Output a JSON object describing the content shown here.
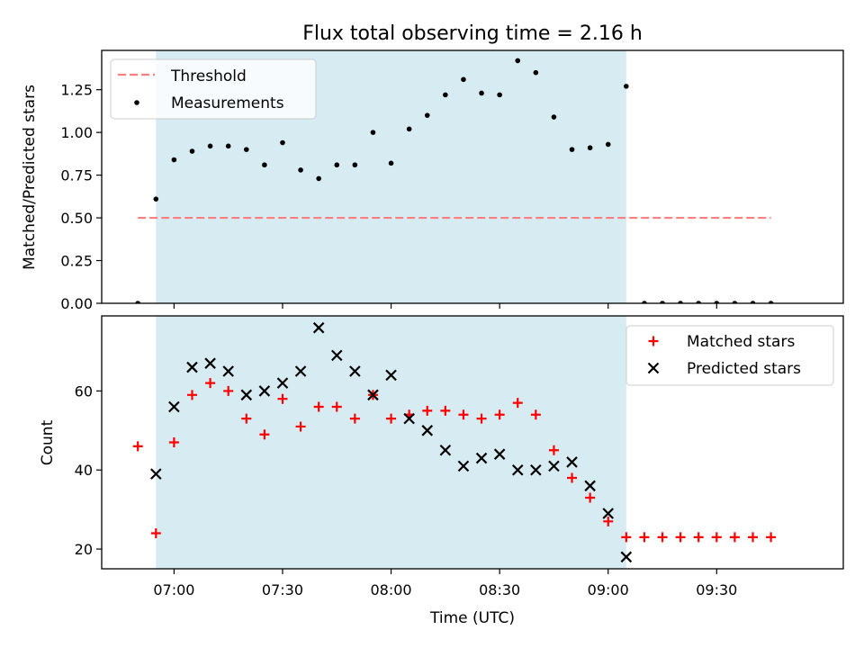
{
  "title": "Flux total observing time = 2.16 h",
  "chart_data": [
    {
      "type": "scatter",
      "ylabel": "Matched/Predicted stars",
      "xlim": [
        "06:40",
        "10:05"
      ],
      "ylim": [
        0,
        1.48
      ],
      "yticks": [
        "0.00",
        "0.25",
        "0.50",
        "0.75",
        "1.00",
        "1.25"
      ],
      "shaded_span": [
        "06:55",
        "09:05"
      ],
      "shaded_color": "#add8e6",
      "threshold": {
        "value": 0.5,
        "x_range": [
          "06:50",
          "09:45"
        ],
        "color": "#ff7f7f"
      },
      "legend_position": "upper left",
      "legend": [
        "Threshold",
        "Measurements"
      ],
      "series": [
        {
          "name": "Measurements",
          "color": "#000000",
          "marker": "dot",
          "x": [
            "06:50",
            "06:55",
            "07:00",
            "07:05",
            "07:10",
            "07:15",
            "07:20",
            "07:25",
            "07:30",
            "07:35",
            "07:40",
            "07:45",
            "07:50",
            "07:55",
            "08:00",
            "08:05",
            "08:10",
            "08:15",
            "08:20",
            "08:25",
            "08:30",
            "08:35",
            "08:40",
            "08:45",
            "08:50",
            "08:55",
            "09:00",
            "09:05",
            "09:10",
            "09:15",
            "09:20",
            "09:25",
            "09:30",
            "09:35",
            "09:40",
            "09:45"
          ],
          "y": [
            0.0,
            0.61,
            0.84,
            0.89,
            0.92,
            0.92,
            0.9,
            0.81,
            0.94,
            0.78,
            0.73,
            0.81,
            0.81,
            1.0,
            0.82,
            1.02,
            1.1,
            1.22,
            1.31,
            1.23,
            1.22,
            1.42,
            1.35,
            1.09,
            0.9,
            0.91,
            0.93,
            1.27,
            0.0,
            0.0,
            0.0,
            0.0,
            0.0,
            0.0,
            0.0,
            0.0
          ]
        }
      ]
    },
    {
      "type": "scatter",
      "ylabel": "Count",
      "xlabel": "Time (UTC)",
      "xlim": [
        "06:40",
        "10:05"
      ],
      "ylim": [
        15,
        79
      ],
      "yticks": [
        "20",
        "40",
        "60"
      ],
      "xticks": [
        "07:00",
        "07:30",
        "08:00",
        "08:30",
        "09:00",
        "09:30"
      ],
      "shaded_span": [
        "06:55",
        "09:05"
      ],
      "shaded_color": "#add8e6",
      "legend_position": "upper right",
      "legend": [
        "Matched stars",
        "Predicted stars"
      ],
      "series": [
        {
          "name": "Matched stars",
          "color": "#ff0000",
          "marker": "plus",
          "x": [
            "06:50",
            "06:55",
            "07:00",
            "07:05",
            "07:10",
            "07:15",
            "07:20",
            "07:25",
            "07:30",
            "07:35",
            "07:40",
            "07:45",
            "07:50",
            "07:55",
            "08:00",
            "08:05",
            "08:10",
            "08:15",
            "08:20",
            "08:25",
            "08:30",
            "08:35",
            "08:40",
            "08:45",
            "08:50",
            "08:55",
            "09:00",
            "09:05",
            "09:10",
            "09:15",
            "09:20",
            "09:25",
            "09:30",
            "09:35",
            "09:40",
            "09:45"
          ],
          "y": [
            46,
            24,
            47,
            59,
            62,
            60,
            53,
            49,
            58,
            51,
            56,
            56,
            53,
            59,
            53,
            54,
            55,
            55,
            54,
            53,
            54,
            57,
            54,
            45,
            38,
            33,
            27,
            23,
            23,
            23,
            23,
            23,
            23,
            23,
            23,
            23
          ]
        },
        {
          "name": "Predicted stars",
          "color": "#000000",
          "marker": "x",
          "x": [
            "06:55",
            "07:00",
            "07:05",
            "07:10",
            "07:15",
            "07:20",
            "07:25",
            "07:30",
            "07:35",
            "07:40",
            "07:45",
            "07:50",
            "07:55",
            "08:00",
            "08:05",
            "08:10",
            "08:15",
            "08:20",
            "08:25",
            "08:30",
            "08:35",
            "08:40",
            "08:45",
            "08:50",
            "08:55",
            "09:00",
            "09:05"
          ],
          "y": [
            39,
            56,
            66,
            67,
            65,
            59,
            60,
            62,
            65,
            76,
            69,
            65,
            59,
            64,
            53,
            50,
            45,
            41,
            43,
            44,
            40,
            40,
            41,
            42,
            36,
            29,
            18
          ]
        }
      ]
    }
  ]
}
